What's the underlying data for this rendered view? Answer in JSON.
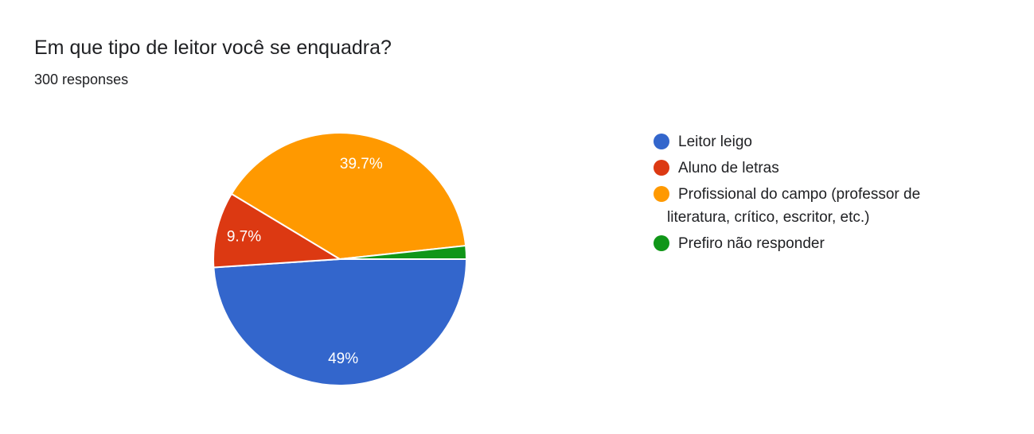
{
  "header": {
    "title": "Em que tipo de leitor você se enquadra?",
    "subtitle": "300 responses"
  },
  "legend": {
    "items": [
      {
        "label": "Leitor leigo",
        "color": "#3366cc"
      },
      {
        "label": "Aluno de letras",
        "color": "#dc3912"
      },
      {
        "label": "Profissional do campo (professor de",
        "label_line2": "literatura, crítico, escritor, etc.)",
        "color": "#ff9900"
      },
      {
        "label": "Prefiro não responder",
        "color": "#109618"
      }
    ]
  },
  "slice_labels": [
    "49%",
    "9.7%",
    "39.7%"
  ],
  "chart_data": {
    "type": "pie",
    "title": "Em que tipo de leitor você se enquadra?",
    "subtitle": "300 responses",
    "categories": [
      "Leitor leigo",
      "Aluno de letras",
      "Profissional do campo (professor de literatura, crítico, escritor, etc.)",
      "Prefiro não responder"
    ],
    "values": [
      49,
      9.7,
      39.7,
      1.7
    ],
    "counts": [
      147,
      29,
      119,
      5
    ],
    "colors": [
      "#3366cc",
      "#dc3912",
      "#ff9900",
      "#109618"
    ],
    "data_labels": [
      "49%",
      "9.7%",
      "39.7%",
      ""
    ],
    "legend_position": "right",
    "start_angle": "3 o'clock, clockwise"
  }
}
